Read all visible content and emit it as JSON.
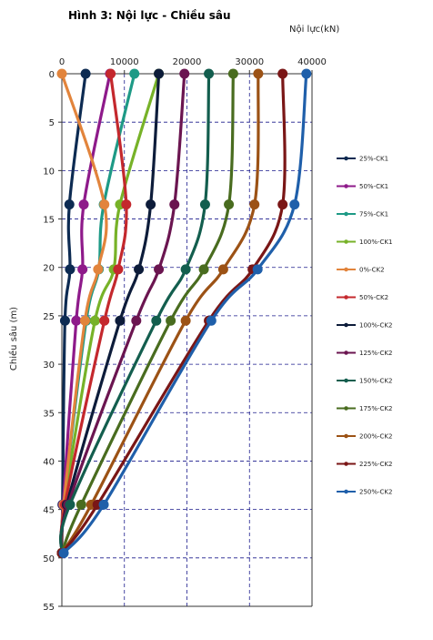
{
  "chart_data": {
    "type": "line",
    "title": "Hình 3: Nội lực - Chiều sâu",
    "xlabel": "Nội lực(kN)",
    "ylabel": "Chiều sâu (m)",
    "xlim": [
      0,
      40000
    ],
    "ylim": [
      0,
      55
    ],
    "x_ticks": [
      "0",
      "10000",
      "20000",
      "30000",
      "40000"
    ],
    "y_ticks": [
      "0",
      "5",
      "10",
      "15",
      "20",
      "25",
      "30",
      "35",
      "40",
      "45",
      "50",
      "55"
    ],
    "grid": true,
    "x_axis_position": "top",
    "y_axis_inverted": true,
    "legend_position": "right",
    "series": [
      {
        "name": "25%-CK1",
        "color": "#0d2b52",
        "depth": [
          0,
          13.5,
          20.2,
          25.5,
          44.5,
          49.5
        ],
        "force": [
          3800,
          1200,
          1300,
          500,
          100,
          0
        ]
      },
      {
        "name": "50%-CK1",
        "color": "#8e1a8a",
        "depth": [
          0,
          13.5,
          20.2,
          25.5,
          44.5,
          49.5
        ],
        "force": [
          7700,
          3500,
          3300,
          2300,
          200,
          0
        ]
      },
      {
        "name": "75%-CK1",
        "color": "#1e9a86",
        "depth": [
          0,
          13.5,
          20.2,
          25.5,
          44.5,
          49.5
        ],
        "force": [
          11600,
          6700,
          5900,
          3900,
          300,
          0
        ]
      },
      {
        "name": "100%-CK1",
        "color": "#77b228",
        "depth": [
          0,
          13.5,
          20.2,
          25.5,
          44.5,
          49.5
        ],
        "force": [
          15500,
          9300,
          8300,
          5300,
          400,
          0
        ]
      },
      {
        "name": "0%-CK2",
        "color": "#e2843c",
        "depth": [
          0,
          13.5,
          20.2,
          25.5,
          44.5,
          49.5
        ],
        "force": [
          0,
          6800,
          5800,
          3700,
          300,
          0
        ]
      },
      {
        "name": "50%-CK2",
        "color": "#c4282d",
        "depth": [
          0,
          13.5,
          20.2,
          25.5,
          44.5,
          49.5
        ],
        "force": [
          7800,
          10300,
          9000,
          6800,
          500,
          0
        ]
      },
      {
        "name": "100%-CK2",
        "color": "#0d1c3a",
        "depth": [
          0,
          13.5,
          20.2,
          25.5,
          44.5,
          49.5
        ],
        "force": [
          15500,
          14200,
          12300,
          9300,
          800,
          0
        ]
      },
      {
        "name": "125%-CK2",
        "color": "#6b1550",
        "depth": [
          0,
          13.5,
          20.2,
          25.5,
          44.5,
          49.5
        ],
        "force": [
          19600,
          18000,
          15500,
          11900,
          1000,
          0
        ]
      },
      {
        "name": "150%-CK2",
        "color": "#135e4e",
        "depth": [
          0,
          13.5,
          20.2,
          25.5,
          44.5,
          49.5
        ],
        "force": [
          23500,
          22900,
          19800,
          15100,
          1300,
          0
        ]
      },
      {
        "name": "175%-CK2",
        "color": "#496c1f",
        "depth": [
          0,
          13.5,
          20.2,
          25.5,
          44.5,
          49.5
        ],
        "force": [
          27400,
          26700,
          22700,
          17400,
          3100,
          0
        ]
      },
      {
        "name": "200%-CK2",
        "color": "#9c5215",
        "depth": [
          0,
          13.5,
          20.2,
          25.5,
          44.5,
          49.5
        ],
        "force": [
          31400,
          30800,
          25800,
          19800,
          4700,
          0
        ]
      },
      {
        "name": "225%-CK2",
        "color": "#7a1616",
        "depth": [
          0,
          13.5,
          20.2,
          25.5,
          44.5,
          49.5
        ],
        "force": [
          35300,
          35300,
          30500,
          23500,
          5700,
          0
        ]
      },
      {
        "name": "250%-CK2",
        "color": "#1f5faa",
        "depth": [
          0,
          13.5,
          20.2,
          25.5,
          44.5,
          49.5
        ],
        "force": [
          39100,
          37200,
          31300,
          23900,
          6700,
          300
        ]
      }
    ]
  }
}
